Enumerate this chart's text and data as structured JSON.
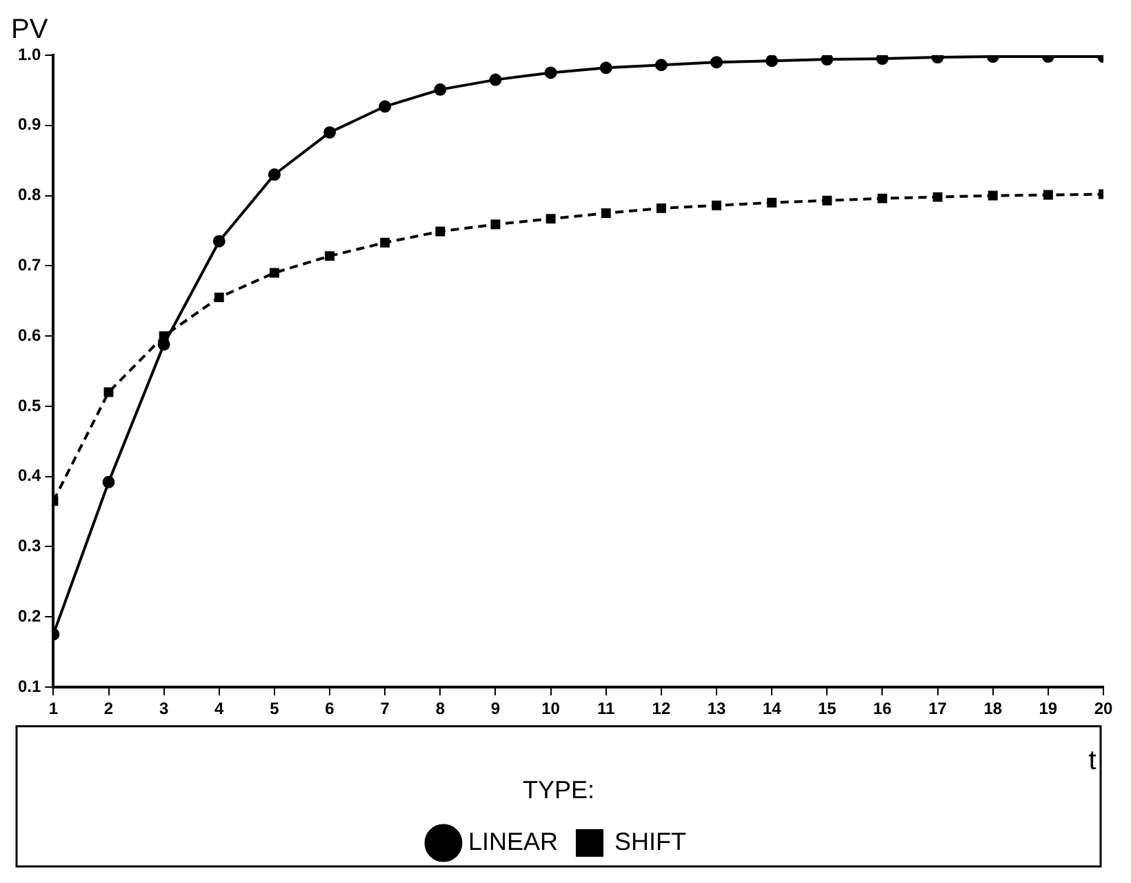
{
  "chart_data": {
    "type": "line",
    "xlabel": "t",
    "ylabel": "PV",
    "legend_title": "TYPE:",
    "legend": "bottom",
    "grid": false,
    "x": [
      1,
      2,
      3,
      4,
      5,
      6,
      7,
      8,
      9,
      10,
      11,
      12,
      13,
      14,
      15,
      16,
      17,
      18,
      19,
      20
    ],
    "xlim": [
      1,
      20
    ],
    "xticks": [
      1,
      2,
      3,
      4,
      5,
      6,
      7,
      8,
      9,
      10,
      11,
      12,
      13,
      14,
      15,
      16,
      17,
      18,
      19,
      20
    ],
    "ylim": [
      0.1,
      1.0
    ],
    "yticks": [
      0.1,
      0.2,
      0.3,
      0.4,
      0.5,
      0.6,
      0.7,
      0.8,
      0.9,
      {
        "value": 1.0,
        "label": "1.0"
      }
    ],
    "series": [
      {
        "name": "LINEAR",
        "color": "#000000",
        "marker": "circle",
        "line_style": "solid",
        "values": [
          0.175,
          0.392,
          0.588,
          0.735,
          0.83,
          0.89,
          0.927,
          0.951,
          0.965,
          0.975,
          0.982,
          0.986,
          0.99,
          0.992,
          0.994,
          0.995,
          0.997,
          0.998,
          0.998,
          0.998
        ]
      },
      {
        "name": "SHIFT",
        "color": "#000000",
        "marker": "square",
        "line_style": "dashed",
        "values": [
          0.365,
          0.52,
          0.6,
          0.655,
          0.69,
          0.714,
          0.733,
          0.749,
          0.759,
          0.767,
          0.775,
          0.782,
          0.786,
          0.79,
          0.793,
          0.796,
          0.798,
          0.8,
          0.801,
          0.802
        ]
      }
    ]
  }
}
